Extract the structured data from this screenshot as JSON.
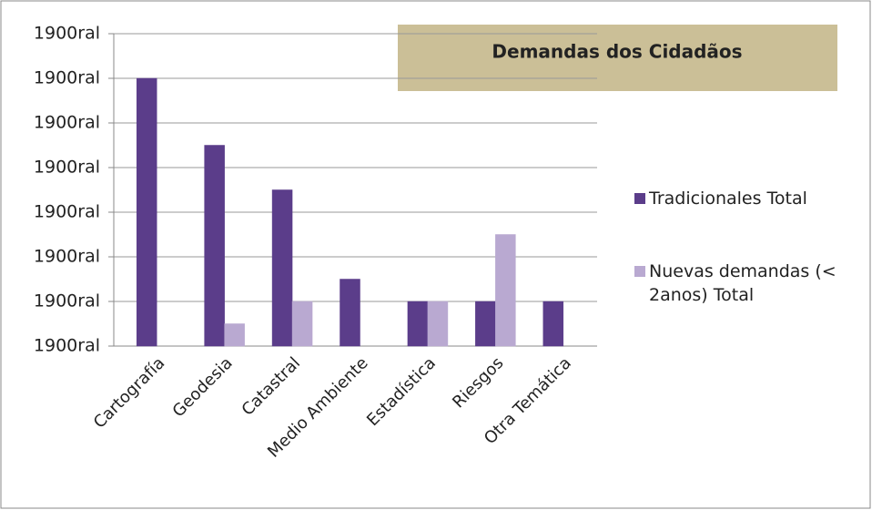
{
  "chart_data": {
    "type": "bar",
    "title": "Demandas  dos Cidadãos",
    "categories": [
      "Cartografía",
      "Geodesia",
      "Catastral",
      "Medio Ambiente",
      "Estadística",
      "Riesgos",
      "Otra Temática"
    ],
    "series": [
      {
        "name": "Tradicionales Total",
        "color": "#5b3d8a",
        "values": [
          6,
          4.5,
          3.5,
          1.5,
          1,
          1,
          1
        ]
      },
      {
        "name": "Nuevas demandas (< 2anos) Total",
        "color": "#b9a9d1",
        "values": [
          0,
          0.5,
          1,
          0,
          1,
          2.5,
          0
        ]
      }
    ],
    "ylim": [
      0,
      6.9
    ],
    "yticks": [
      {
        "value": 0,
        "label": "1900ral"
      },
      {
        "value": 1,
        "label": "1900ral"
      },
      {
        "value": 2,
        "label": "1900ral"
      },
      {
        "value": 3,
        "label": "1900ral"
      },
      {
        "value": 4,
        "label": "1900ral"
      },
      {
        "value": 5,
        "label": "1900ral"
      },
      {
        "value": 6,
        "label": "1900ral"
      },
      {
        "value": 7,
        "label": "1900ral"
      }
    ],
    "grid": true,
    "legend": "right"
  }
}
